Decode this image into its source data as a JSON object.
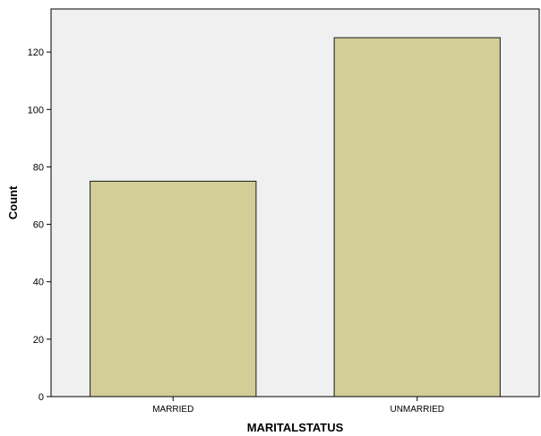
{
  "chart_data": {
    "type": "bar",
    "categories": [
      "MARRIED",
      "UNMARRIED"
    ],
    "values": [
      75,
      125
    ],
    "xlabel": "MARITALSTATUS",
    "ylabel": "Count",
    "ylim": [
      0,
      135
    ],
    "yticks": [
      0,
      20,
      40,
      60,
      80,
      100,
      120
    ],
    "grid": false,
    "legend": "none",
    "colors": {
      "plot_background": "#f0f0f0",
      "bar_fill": "#d3ce98",
      "bar_stroke": "#1a1a1a",
      "axis": "#000000"
    }
  }
}
